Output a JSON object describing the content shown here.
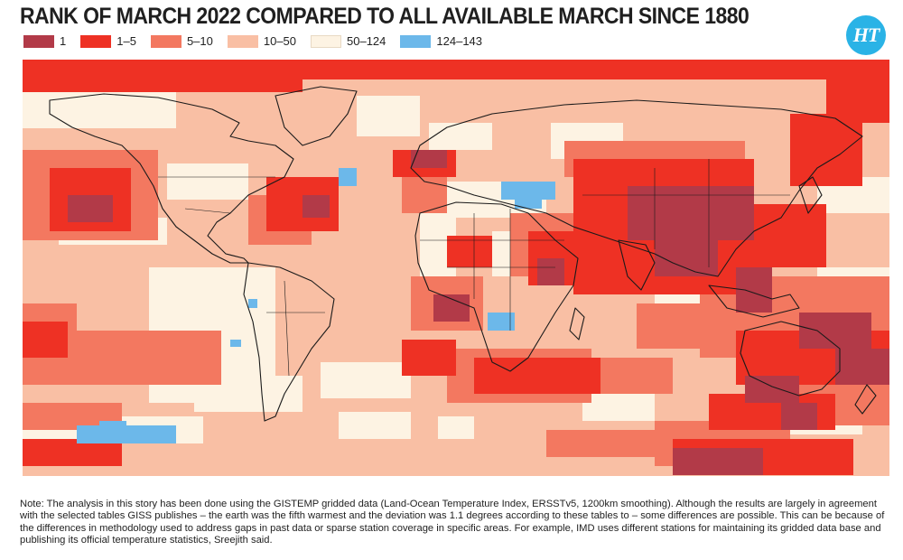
{
  "title": "RANK OF MARCH 2022 COMPARED TO ALL AVAILABLE MARCH SINCE 1880",
  "logo_text": "HT",
  "legend": [
    {
      "label": "1",
      "color": "#b23a48"
    },
    {
      "label": "1–5",
      "color": "#ee3124"
    },
    {
      "label": "5–10",
      "color": "#f37860"
    },
    {
      "label": "10–50",
      "color": "#f9bfa4"
    },
    {
      "label": "50–124",
      "color": "#fdf3e3"
    },
    {
      "label": "124–143",
      "color": "#6cb8ea"
    }
  ],
  "note": "Note: The analysis in this story has been done using the GISTEMP gridded data (Land-Ocean Temperature Index, ERSSTv5, 1200km smoothing). Although the results are largely in agreement with the selected tables GISS publishes – the earth was the fifth warmest and the deviation was 1.1 degrees according to these tables to – some differences are possible. This can be because of the differences in methodology used to address gaps in past data or sparse station coverage in specific areas. For example, IMD uses different stations for maintaining its gridded data base and publishing its official temperature statistics, Sreejith said.",
  "colors": {
    "rank1": "#b23a48",
    "rank1_5": "#ee3124",
    "rank5_10": "#f37860",
    "rank10_50": "#f9bfa4",
    "rank50_124": "#fdf3e3",
    "rank124_143": "#6cb8ea",
    "coastline": "#1a1a1a"
  }
}
